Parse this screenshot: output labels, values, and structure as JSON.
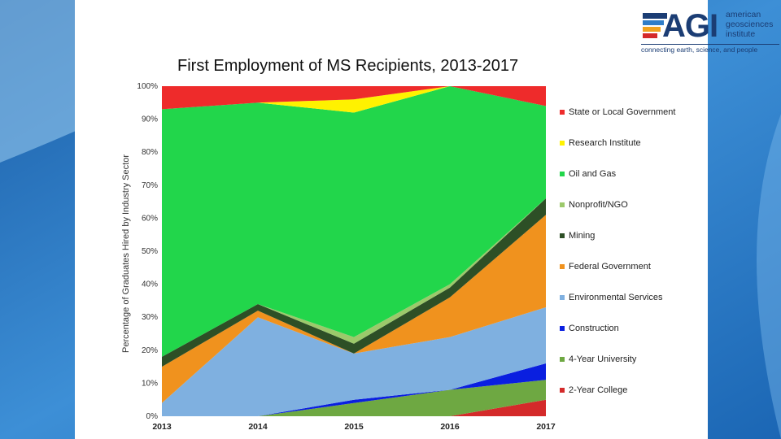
{
  "logo": {
    "name": "AGI",
    "org_line1": "american",
    "org_line2": "geosciences",
    "org_line3": "institute",
    "tagline": "connecting earth, science, and people"
  },
  "chart_data": {
    "type": "area",
    "stacked": true,
    "title": "First Employment of MS Recipients, 2013-2017",
    "xlabel": "",
    "ylabel": "Percentage of Graduates Hired by Industry Sector",
    "ylim": [
      0,
      100
    ],
    "x": [
      "2013",
      "2014",
      "2015",
      "2016",
      "2017"
    ],
    "yticks": [
      "0%",
      "10%",
      "20%",
      "30%",
      "40%",
      "50%",
      "60%",
      "70%",
      "80%",
      "90%",
      "100%"
    ],
    "legend_position": "right",
    "series": [
      {
        "name": "2-Year College",
        "color": "#d42a2a",
        "values": [
          0,
          0,
          0,
          0,
          5
        ]
      },
      {
        "name": "4-Year University",
        "color": "#6ea842",
        "values": [
          0,
          0,
          4,
          8,
          6
        ]
      },
      {
        "name": "Construction",
        "color": "#0a1fe0",
        "values": [
          0,
          0,
          1,
          0,
          5
        ]
      },
      {
        "name": "Environmental Services",
        "color": "#7fb0e0",
        "values": [
          4,
          30,
          14,
          16,
          17
        ]
      },
      {
        "name": "Federal Government",
        "color": "#f0921e",
        "values": [
          11,
          2,
          0,
          12,
          28
        ]
      },
      {
        "name": "Mining",
        "color": "#2d4f26",
        "values": [
          3,
          2,
          3,
          3,
          5
        ]
      },
      {
        "name": "Nonprofit/NGO",
        "color": "#9cc96b",
        "values": [
          0,
          0,
          2,
          1,
          0
        ]
      },
      {
        "name": "Oil and Gas",
        "color": "#22d64b",
        "values": [
          75,
          61,
          68,
          60,
          28
        ]
      },
      {
        "name": "Research Institute",
        "color": "#fff200",
        "values": [
          0,
          0,
          4,
          0,
          0
        ]
      },
      {
        "name": "State or Local Government",
        "color": "#ee2b2b",
        "values": [
          7,
          5,
          4,
          0,
          6
        ]
      }
    ],
    "legend_order": [
      "State or Local Government",
      "Research Institute",
      "Oil and Gas",
      "Nonprofit/NGO",
      "Mining",
      "Federal Government",
      "Environmental Services",
      "Construction",
      "4-Year University",
      "2-Year College"
    ]
  }
}
